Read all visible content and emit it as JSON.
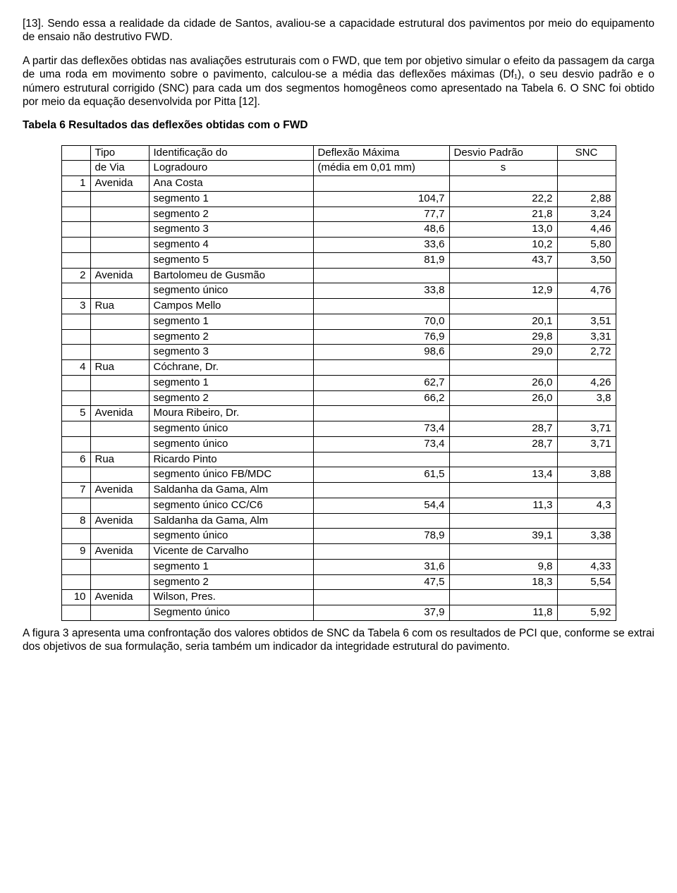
{
  "paragraphs": {
    "p1": "[13]. Sendo essa a realidade da cidade de Santos, avaliou-se a capacidade estrutural dos pavimentos por meio do equipamento de ensaio não destrutivo FWD.",
    "p2": "A partir das deflexões obtidas nas avaliações estruturais com o FWD, que tem por objetivo simular o efeito da passagem da carga de uma roda em movimento sobre o pavimento, calculou-se a média das deflexões máximas (Df₁), o seu desvio padrão e o número estrutural corrigido (SNC) para cada um dos segmentos homogêneos como apresentado na Tabela 6. O SNC foi obtido por meio da equação desenvolvida por Pitta [12].",
    "tableTitle": "Tabela 6 Resultados das deflexões obtidas com o FWD",
    "p3": "A figura 3 apresenta uma confrontação dos valores obtidos de SNC da Tabela 6 com os resultados de PCI que, conforme se extrai dos objetivos de sua formulação, seria também um indicador da integridade estrutural do pavimento."
  },
  "tableHeader": {
    "h_tipo1": "Tipo",
    "h_tipo2": "de Via",
    "h_ident1": "Identificação do",
    "h_ident2": "Logradouro",
    "h_def1": "Deflexão Máxima",
    "h_def2": "(média em 0,01 mm)",
    "h_dp1": "Desvio Padrão",
    "h_dp2": "s",
    "h_snc": "SNC"
  },
  "rows": [
    {
      "n": "1",
      "tipo": "Avenida",
      "ident": "Ana Costa",
      "def": "",
      "dp": "",
      "snc": ""
    },
    {
      "n": "",
      "tipo": "",
      "ident": "segmento 1",
      "def": "104,7",
      "dp": "22,2",
      "snc": "2,88"
    },
    {
      "n": "",
      "tipo": "",
      "ident": "segmento 2",
      "def": "77,7",
      "dp": "21,8",
      "snc": "3,24"
    },
    {
      "n": "",
      "tipo": "",
      "ident": "segmento 3",
      "def": "48,6",
      "dp": "13,0",
      "snc": "4,46"
    },
    {
      "n": "",
      "tipo": "",
      "ident": "segmento 4",
      "def": "33,6",
      "dp": "10,2",
      "snc": "5,80"
    },
    {
      "n": "",
      "tipo": "",
      "ident": "segmento 5",
      "def": "81,9",
      "dp": "43,7",
      "snc": "3,50"
    },
    {
      "n": "2",
      "tipo": "Avenida",
      "ident": "Bartolomeu de Gusmão",
      "def": "",
      "dp": "",
      "snc": ""
    },
    {
      "n": "",
      "tipo": "",
      "ident": "segmento único",
      "def": "33,8",
      "dp": "12,9",
      "snc": "4,76"
    },
    {
      "n": "3",
      "tipo": "Rua",
      "ident": "Campos Mello",
      "def": "",
      "dp": "",
      "snc": ""
    },
    {
      "n": "",
      "tipo": "",
      "ident": "segmento 1",
      "def": "70,0",
      "dp": "20,1",
      "snc": "3,51"
    },
    {
      "n": "",
      "tipo": "",
      "ident": "segmento 2",
      "def": "76,9",
      "dp": "29,8",
      "snc": "3,31"
    },
    {
      "n": "",
      "tipo": "",
      "ident": "segmento 3",
      "def": "98,6",
      "dp": "29,0",
      "snc": "2,72"
    },
    {
      "n": "4",
      "tipo": "Rua",
      "ident": "Cóchrane, Dr.",
      "def": "",
      "dp": "",
      "snc": ""
    },
    {
      "n": "",
      "tipo": "",
      "ident": "segmento 1",
      "def": "62,7",
      "dp": "26,0",
      "snc": "4,26"
    },
    {
      "n": "",
      "tipo": "",
      "ident": "segmento 2",
      "def": "66,2",
      "dp": "26,0",
      "snc": "3,8"
    },
    {
      "n": "5",
      "tipo": "Avenida",
      "ident": "Moura Ribeiro, Dr.",
      "def": "",
      "dp": "",
      "snc": ""
    },
    {
      "n": "",
      "tipo": "",
      "ident": "segmento único",
      "def": "73,4",
      "dp": "28,7",
      "snc": "3,71"
    },
    {
      "n": "",
      "tipo": "",
      "ident": "segmento único",
      "def": "73,4",
      "dp": "28,7",
      "snc": "3,71"
    },
    {
      "n": "6",
      "tipo": "Rua",
      "ident": "Ricardo Pinto",
      "def": "",
      "dp": "",
      "snc": ""
    },
    {
      "n": "",
      "tipo": "",
      "ident": "segmento único FB/MDC",
      "def": "61,5",
      "dp": "13,4",
      "snc": "3,88"
    },
    {
      "n": "7",
      "tipo": "Avenida",
      "ident": "Saldanha da Gama, Alm",
      "def": "",
      "dp": "",
      "snc": ""
    },
    {
      "n": "",
      "tipo": "",
      "ident": "segmento único CC/C6",
      "def": "54,4",
      "dp": "11,3",
      "snc": "4,3"
    },
    {
      "n": "8",
      "tipo": "Avenida",
      "ident": "Saldanha da Gama, Alm",
      "def": "",
      "dp": "",
      "snc": ""
    },
    {
      "n": "",
      "tipo": "",
      "ident": "segmento único",
      "def": "78,9",
      "dp": "39,1",
      "snc": "3,38"
    },
    {
      "n": "9",
      "tipo": "Avenida",
      "ident": "Vicente de Carvalho",
      "def": "",
      "dp": "",
      "snc": ""
    },
    {
      "n": "",
      "tipo": "",
      "ident": "segmento 1",
      "def": "31,6",
      "dp": "9,8",
      "snc": "4,33"
    },
    {
      "n": "",
      "tipo": "",
      "ident": "segmento 2",
      "def": "47,5",
      "dp": "18,3",
      "snc": "5,54"
    },
    {
      "n": "10",
      "tipo": "Avenida",
      "ident": "Wilson, Pres.",
      "def": "",
      "dp": "",
      "snc": ""
    },
    {
      "n": "",
      "tipo": "",
      "ident": "Segmento único",
      "def": "37,9",
      "dp": "11,8",
      "snc": "5,92"
    }
  ]
}
